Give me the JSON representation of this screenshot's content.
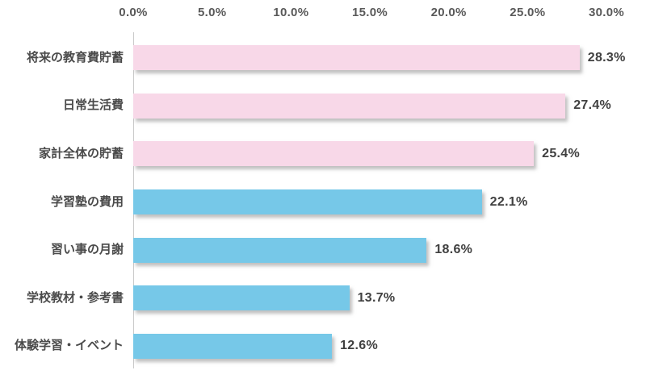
{
  "chart_data": {
    "type": "bar",
    "orientation": "horizontal",
    "title": "",
    "xlabel": "",
    "ylabel": "",
    "xlim": [
      0,
      30
    ],
    "grid": false,
    "legend": false,
    "categories": [
      "将来の教育費貯蓄",
      "日常生活費",
      "家計全体の貯蓄",
      "学習塾の費用",
      "習い事の月謝",
      "学校教材・参考書",
      "体験学習・イベント"
    ],
    "values": [
      28.3,
      27.4,
      25.4,
      22.1,
      18.6,
      13.7,
      12.6
    ],
    "value_labels": [
      "28.3%",
      "27.4%",
      "25.4%",
      "22.1%",
      "18.6%",
      "13.7%",
      "12.6%"
    ],
    "bar_colors": [
      "#f8d8e8",
      "#f8d8e8",
      "#f8d8e8",
      "#76c8e8",
      "#76c8e8",
      "#76c8e8",
      "#76c8e8"
    ],
    "x_ticks": {
      "values": [
        0,
        5,
        10,
        15,
        20,
        25,
        30
      ],
      "labels": [
        "0.0%",
        "5.0%",
        "10.0%",
        "15.0%",
        "20.0%",
        "25.0%",
        "30.0%"
      ]
    },
    "colors": {
      "pink": "#f8d8e8",
      "blue": "#76c8e8",
      "axis_line": "#c9c9c9",
      "tick_text": "#595959",
      "label_text": "#404040"
    }
  }
}
